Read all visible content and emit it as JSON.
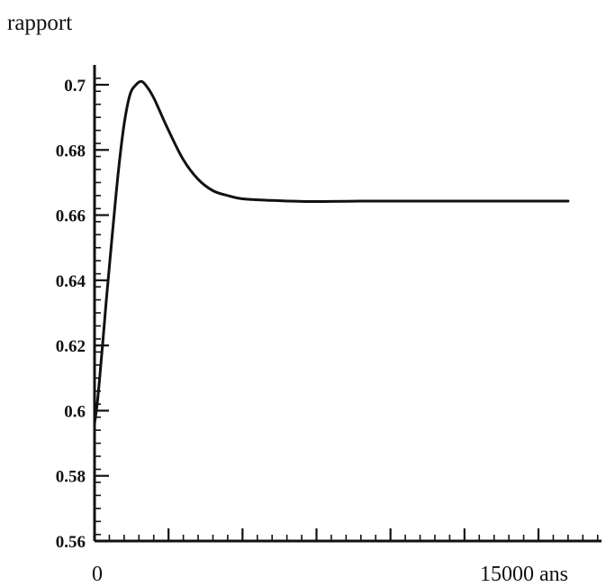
{
  "chart_data": {
    "type": "line",
    "title": "",
    "ylabel": "rapport",
    "xlabel": "",
    "xlim": [
      0,
      17500
    ],
    "ylim": [
      0.56,
      0.705
    ],
    "grid": false,
    "y_ticks": [
      {
        "value": 0.56,
        "label": "0.56"
      },
      {
        "value": 0.58,
        "label": "0.58"
      },
      {
        "value": 0.6,
        "label": "0.6"
      },
      {
        "value": 0.62,
        "label": "0.62"
      },
      {
        "value": 0.64,
        "label": "0.64"
      },
      {
        "value": 0.66,
        "label": "0.66"
      },
      {
        "value": 0.68,
        "label": "0.68"
      },
      {
        "value": 0.7,
        "label": "0.7"
      }
    ],
    "x_ticks": [
      {
        "value": 0,
        "label": "0"
      },
      {
        "value": 15000,
        "label": "15000 ans"
      }
    ],
    "series": [
      {
        "name": "",
        "color": "#111111",
        "x": [
          0,
          100,
          250,
          400,
          600,
          800,
          1000,
          1200,
          1400,
          1600,
          1800,
          2000,
          2200,
          2500,
          3000,
          3500,
          4000,
          4500,
          5000,
          6000,
          7000,
          8000,
          9000,
          10000,
          12000,
          14000,
          16000
        ],
        "y": [
          0.596,
          0.603,
          0.618,
          0.634,
          0.654,
          0.673,
          0.688,
          0.697,
          0.7,
          0.701,
          0.699,
          0.696,
          0.692,
          0.686,
          0.677,
          0.671,
          0.6675,
          0.666,
          0.665,
          0.6645,
          0.6642,
          0.6642,
          0.6643,
          0.6643,
          0.6643,
          0.6643,
          0.6643
        ]
      }
    ]
  }
}
